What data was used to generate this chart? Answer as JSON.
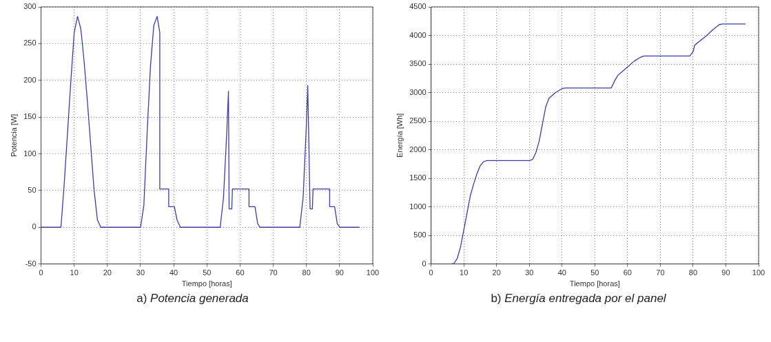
{
  "chart_data": [
    {
      "type": "line",
      "xlabel": "Tiempo [horas]",
      "ylabel": "Potencia [W]",
      "annotations": [
        "a) Potencia generada"
      ],
      "xlim": [
        0,
        100
      ],
      "xticks": [
        0,
        10,
        20,
        30,
        40,
        50,
        60,
        70,
        80,
        90,
        100
      ],
      "ylim": [
        -50,
        300
      ],
      "yticks": [
        -50,
        0,
        50,
        100,
        150,
        200,
        250,
        300
      ],
      "grid": true,
      "legend": false,
      "series": [
        {
          "color": "#3c3ca8",
          "x": [
            0,
            6,
            7,
            8,
            9,
            10,
            11,
            12,
            13,
            14,
            15,
            16,
            17,
            18,
            30,
            31,
            32,
            33,
            34,
            35,
            35.8,
            35.8,
            38.5,
            38.5,
            40.2,
            41,
            42,
            54,
            55,
            56,
            56.5,
            56.7,
            57.5,
            57.7,
            62.7,
            62.7,
            64.5,
            65.3,
            66,
            78,
            79,
            80,
            80.4,
            80.8,
            81.1,
            81.8,
            82,
            87,
            87,
            88.5,
            89.3,
            90,
            96
          ],
          "values": [
            0,
            0,
            60,
            130,
            200,
            265,
            287,
            270,
            225,
            170,
            110,
            50,
            10,
            0,
            0,
            30,
            130,
            220,
            275,
            287,
            265,
            52,
            52,
            28,
            28,
            10,
            0,
            0,
            40,
            130,
            185,
            25,
            25,
            52,
            52,
            28,
            28,
            5,
            0,
            0,
            40,
            140,
            193,
            100,
            25,
            25,
            52,
            52,
            28,
            28,
            5,
            0,
            0
          ]
        }
      ]
    },
    {
      "type": "line",
      "xlabel": "Tiempo [horas]",
      "ylabel": "Energía [Wh]",
      "annotations": [
        "b) Energía entregada por el panel"
      ],
      "xlim": [
        0,
        100
      ],
      "xticks": [
        0,
        10,
        20,
        30,
        40,
        50,
        60,
        70,
        80,
        90,
        100
      ],
      "ylim": [
        0,
        4500
      ],
      "yticks": [
        0,
        500,
        1000,
        1500,
        2000,
        2500,
        3000,
        3500,
        4000,
        4500
      ],
      "grid": true,
      "legend": false,
      "series": [
        {
          "color": "#3c3ca8",
          "x": [
            6,
            7,
            8,
            9,
            10,
            11,
            12,
            13,
            14,
            15,
            16,
            17,
            30,
            31,
            32,
            33,
            34,
            35,
            36,
            38,
            40,
            41,
            55,
            56,
            57,
            58,
            60,
            62,
            64,
            65,
            79,
            80,
            80.5,
            82,
            84,
            86,
            88,
            89,
            96
          ],
          "values": [
            0,
            10,
            100,
            300,
            600,
            900,
            1200,
            1400,
            1580,
            1720,
            1790,
            1810,
            1810,
            1830,
            1950,
            2150,
            2450,
            2750,
            2900,
            3000,
            3070,
            3080,
            3080,
            3200,
            3300,
            3350,
            3450,
            3550,
            3620,
            3640,
            3640,
            3720,
            3830,
            3900,
            3990,
            4100,
            4190,
            4200,
            4200
          ]
        }
      ]
    }
  ]
}
